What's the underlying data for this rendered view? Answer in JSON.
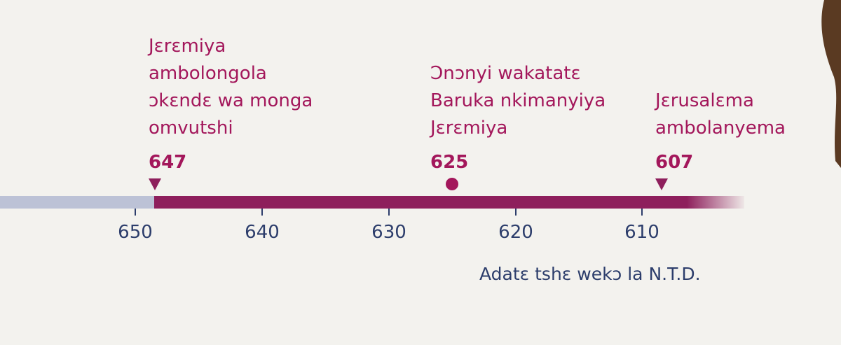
{
  "events": [
    {
      "lines": [
        "Jɛrɛmiya",
        "ambolongola",
        "ɔkɛndɛ wa monga",
        "omvutshi"
      ],
      "year": 647
    },
    {
      "lines": [
        "Ɔnɔnyi wakatatɛ",
        "Baruka nkimanyiya",
        "Jɛrɛmiya"
      ],
      "year": 625
    },
    {
      "lines": [
        "Jɛrusalɛma",
        "ambolanyema"
      ],
      "year": 607
    }
  ],
  "axis": {
    "ticks": [
      650,
      640,
      630,
      620,
      610
    ]
  },
  "caption": "Adatɛ tshɛ wekɔ la N.T.D."
}
